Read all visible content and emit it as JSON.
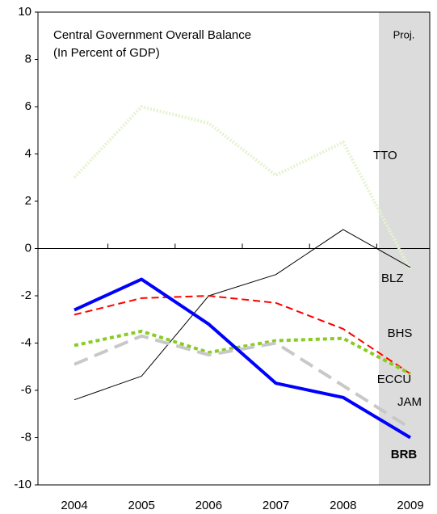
{
  "chart_data": {
    "type": "line",
    "title": "Central Government Overall Balance",
    "subtitle": "(In Percent of GDP)",
    "annotation": "Proj.",
    "categories": [
      "2004",
      "2005",
      "2006",
      "2007",
      "2008",
      "2009"
    ],
    "ylim": [
      -10,
      10
    ],
    "yticks": [
      -10,
      -8,
      -6,
      -4,
      -2,
      0,
      2,
      4,
      6,
      8,
      10
    ],
    "series": [
      {
        "name": "TTO",
        "color": "#e4f3cf",
        "values": [
          3.0,
          6.0,
          5.3,
          3.1,
          4.5,
          -0.9
        ]
      },
      {
        "name": "BLZ",
        "color": "#000000",
        "values": [
          -6.4,
          -5.4,
          -2.0,
          -1.1,
          0.8,
          -0.8
        ]
      },
      {
        "name": "BHS",
        "color": "#ff0000",
        "values": [
          -2.8,
          -2.1,
          -2.0,
          -2.3,
          -3.4,
          -5.3
        ]
      },
      {
        "name": "ECCU",
        "color": "#88cc22",
        "values": [
          -4.1,
          -3.5,
          -4.4,
          -3.9,
          -3.8,
          -5.3
        ]
      },
      {
        "name": "JAM",
        "color": "#c8c8c8",
        "values": [
          -4.9,
          -3.7,
          -4.5,
          -4.0,
          -5.8,
          -7.6
        ]
      },
      {
        "name": "BRB",
        "color": "#0000ff",
        "values": [
          -2.6,
          -1.3,
          -3.2,
          -5.7,
          -6.3,
          -8.0
        ]
      }
    ]
  }
}
